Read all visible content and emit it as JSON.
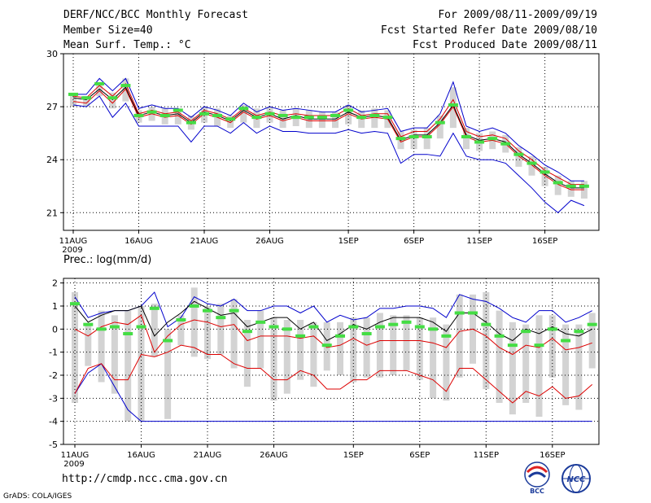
{
  "header": {
    "title": "DERF/NCC/BCC Monthly Forecast",
    "member_size": "Member Size=40",
    "variable": "Mean Surf. Temp.: °C",
    "period": "For 2009/08/11-2009/09/19",
    "refer_date": "Fcst Started Refer Date 2009/08/10",
    "produced_date": "Fcst Produced Date 2009/08/11"
  },
  "footer": {
    "url": "http://cmdp.ncc.cma.gov.cn",
    "grads": "GrADS: COLA/IGES",
    "logo_left": "BCC",
    "logo_right": "NCC"
  },
  "colors": {
    "box": "#d3d3d3",
    "median": "#44dd44",
    "mean": "#000000",
    "quartile": "#dd0000",
    "extreme": "#0000cc"
  },
  "chart_data": [
    {
      "type": "box-line",
      "title": "Mean Surf. Temp.: °C",
      "ylim": [
        20,
        30
      ],
      "yticks": [
        21,
        24,
        27,
        30
      ],
      "grid": true,
      "x_labels": [
        "11AUG",
        "16AUG",
        "21AUG",
        "26AUG",
        "1SEP",
        "6SEP",
        "11SEP",
        "16SEP"
      ],
      "x_sublabel": "2009",
      "days": 40,
      "series": [
        {
          "name": "max",
          "values": [
            27.7,
            27.7,
            28.6,
            27.9,
            28.6,
            26.9,
            27.1,
            26.9,
            26.9,
            26.4,
            27.0,
            26.8,
            26.5,
            27.2,
            26.7,
            27.0,
            26.8,
            26.9,
            26.8,
            26.7,
            26.7,
            27.1,
            26.7,
            26.8,
            26.9,
            25.6,
            25.8,
            25.8,
            26.6,
            28.4,
            25.9,
            25.6,
            25.8,
            25.5,
            24.8,
            24.3,
            23.7,
            23.3,
            22.8,
            22.8
          ]
        },
        {
          "name": "q3",
          "values": [
            27.6,
            27.5,
            28.2,
            27.6,
            28.3,
            26.6,
            26.8,
            26.6,
            26.7,
            26.2,
            26.8,
            26.6,
            26.3,
            26.9,
            26.5,
            26.7,
            26.5,
            26.6,
            26.5,
            26.5,
            26.5,
            26.9,
            26.5,
            26.6,
            26.6,
            25.3,
            25.6,
            25.6,
            26.3,
            27.4,
            25.6,
            25.3,
            25.4,
            25.2,
            24.5,
            24.0,
            23.4,
            23.0,
            22.6,
            22.6
          ]
        },
        {
          "name": "mean",
          "values": [
            27.5,
            27.4,
            28.0,
            27.4,
            28.1,
            26.5,
            26.7,
            26.5,
            26.6,
            26.1,
            26.7,
            26.5,
            26.2,
            26.8,
            26.4,
            26.6,
            26.3,
            26.5,
            26.3,
            26.3,
            26.3,
            26.7,
            26.4,
            26.5,
            26.4,
            25.1,
            25.4,
            25.4,
            26.1,
            27.1,
            25.4,
            25.1,
            25.2,
            25.0,
            24.3,
            23.8,
            23.2,
            22.7,
            22.4,
            22.4
          ]
        },
        {
          "name": "q1",
          "values": [
            27.3,
            27.2,
            27.9,
            27.2,
            28.0,
            26.4,
            26.6,
            26.4,
            26.5,
            26.0,
            26.6,
            26.4,
            26.1,
            26.7,
            26.3,
            26.5,
            26.2,
            26.4,
            26.2,
            26.2,
            26.2,
            26.6,
            26.3,
            26.4,
            26.3,
            25.0,
            25.3,
            25.3,
            26.0,
            27.0,
            25.3,
            25.0,
            25.1,
            24.9,
            24.2,
            23.7,
            23.1,
            22.6,
            22.3,
            22.3
          ]
        },
        {
          "name": "min",
          "values": [
            27.1,
            27.0,
            27.6,
            26.4,
            27.2,
            25.9,
            25.9,
            25.9,
            25.9,
            25.0,
            25.9,
            25.9,
            25.5,
            26.1,
            25.5,
            25.9,
            25.6,
            25.6,
            25.5,
            25.5,
            25.5,
            25.7,
            25.5,
            25.6,
            25.5,
            23.8,
            24.3,
            24.3,
            24.2,
            25.5,
            24.2,
            24.0,
            24.0,
            23.8,
            23.1,
            22.4,
            21.6,
            21.0,
            21.7,
            21.4
          ]
        },
        {
          "name": "median",
          "values": [
            27.7,
            27.5,
            28.3,
            27.5,
            28.2,
            26.5,
            26.7,
            26.5,
            26.8,
            26.1,
            26.6,
            26.5,
            26.3,
            26.9,
            26.4,
            26.6,
            26.5,
            26.4,
            26.4,
            26.4,
            26.5,
            26.8,
            26.4,
            26.5,
            26.4,
            25.2,
            25.3,
            25.3,
            26.1,
            27.1,
            25.3,
            25.0,
            25.2,
            24.9,
            24.3,
            23.8,
            23.3,
            22.7,
            22.5,
            22.5
          ]
        },
        {
          "name": "box_high",
          "values": [
            27.7,
            27.6,
            28.3,
            27.8,
            28.6,
            26.8,
            27.0,
            26.9,
            26.9,
            26.5,
            27.0,
            26.9,
            26.5,
            27.1,
            26.9,
            27.0,
            26.8,
            26.9,
            26.8,
            26.7,
            26.7,
            27.1,
            26.8,
            26.9,
            26.8,
            25.6,
            25.7,
            25.8,
            26.5,
            28.1,
            25.8,
            25.5,
            25.6,
            25.4,
            24.7,
            24.2,
            23.6,
            23.1,
            22.8,
            22.8
          ]
        },
        {
          "name": "box_low",
          "values": [
            27.0,
            27.0,
            27.6,
            26.9,
            27.3,
            26.1,
            26.2,
            26.0,
            26.0,
            25.7,
            26.1,
            25.9,
            25.8,
            26.1,
            25.8,
            26.1,
            25.8,
            25.9,
            25.8,
            25.8,
            25.8,
            26.0,
            25.8,
            25.8,
            25.8,
            24.6,
            24.6,
            24.6,
            25.2,
            25.8,
            24.6,
            24.5,
            24.6,
            24.4,
            23.6,
            23.1,
            22.5,
            22.0,
            21.9,
            21.8
          ]
        }
      ]
    },
    {
      "type": "box-line",
      "title": "Prec.: log(mm/d)",
      "ylim": [
        -5,
        2.2
      ],
      "yticks": [
        -5,
        -4,
        -3,
        -2,
        -1,
        0,
        1,
        2
      ],
      "grid": true,
      "x_labels": [
        "11AUG",
        "16AUG",
        "21AUG",
        "26AUG",
        "1SEP",
        "6SEP",
        "11SEP",
        "16SEP"
      ],
      "x_sublabel": "2009",
      "days": 40,
      "series": [
        {
          "name": "max",
          "values": [
            1.4,
            0.5,
            0.7,
            0.8,
            0.8,
            1.0,
            1.6,
            0.1,
            0.5,
            1.4,
            1.1,
            1.0,
            1.3,
            0.8,
            0.8,
            1.0,
            1.0,
            0.7,
            1.0,
            0.3,
            0.6,
            0.4,
            0.5,
            0.9,
            0.9,
            1.0,
            1.0,
            0.9,
            0.5,
            1.5,
            1.3,
            1.2,
            0.9,
            0.5,
            0.3,
            0.8,
            0.8,
            0.3,
            0.5,
            0.8
          ]
        },
        {
          "name": "mean",
          "values": [
            1.0,
            0.3,
            0.6,
            0.8,
            0.8,
            1.0,
            -0.3,
            0.3,
            0.7,
            1.2,
            0.9,
            0.6,
            0.7,
            0.1,
            0.3,
            0.5,
            0.5,
            0.0,
            0.3,
            -0.5,
            -0.2,
            0.2,
            0.0,
            0.3,
            0.5,
            0.5,
            0.5,
            0.3,
            -0.1,
            0.7,
            0.7,
            0.3,
            -0.2,
            -0.5,
            0.0,
            -0.2,
            0.1,
            -0.2,
            -0.3,
            0.0
          ]
        },
        {
          "name": "q1",
          "values": [
            0.0,
            -0.3,
            0.1,
            0.3,
            0.2,
            0.6,
            -1.0,
            -0.3,
            0.2,
            0.4,
            0.3,
            0.1,
            0.2,
            -0.5,
            -0.3,
            -0.3,
            -0.3,
            -0.4,
            -0.3,
            -0.8,
            -0.7,
            -0.4,
            -0.7,
            -0.5,
            -0.5,
            -0.5,
            -0.5,
            -0.6,
            -0.8,
            -0.1,
            0.0,
            -0.3,
            -0.8,
            -1.1,
            -0.7,
            -0.8,
            -0.4,
            -0.9,
            -0.8,
            -0.6
          ]
        },
        {
          "name": "q3",
          "values": [
            -2.8,
            -1.7,
            -1.5,
            -2.2,
            -2.2,
            -1.1,
            -1.2,
            -1.0,
            -0.7,
            -0.8,
            -1.1,
            -1.1,
            -1.5,
            -1.7,
            -1.7,
            -2.2,
            -2.2,
            -1.8,
            -2.0,
            -2.6,
            -2.6,
            -2.2,
            -2.2,
            -1.8,
            -1.8,
            -1.8,
            -2.0,
            -2.2,
            -2.7,
            -1.7,
            -1.7,
            -2.2,
            -2.7,
            -3.2,
            -2.7,
            -2.9,
            -2.5,
            -3.0,
            -2.9,
            -2.4
          ]
        },
        {
          "name": "min",
          "values": [
            -2.8,
            -1.9,
            -1.5,
            -2.5,
            -3.5,
            -4.0,
            -4.0,
            -4.0,
            -4.0,
            -4.0,
            -4.0,
            -4.0,
            -4.0,
            -4.0,
            -4.0,
            -4.0,
            -4.0,
            -4.0,
            -4.0,
            -4.0,
            -4.0,
            -4.0,
            -4.0,
            -4.0,
            -4.0,
            -4.0,
            -4.0,
            -4.0,
            -4.0,
            -4.0,
            -4.0,
            -4.0,
            -4.0,
            -4.0,
            -4.0,
            -4.0,
            -4.0,
            -4.0,
            -4.0,
            -4.0
          ]
        },
        {
          "name": "median",
          "values": [
            1.1,
            0.2,
            0.0,
            0.1,
            -0.2,
            0.1,
            0.9,
            -0.5,
            0.4,
            1.0,
            0.8,
            0.5,
            0.8,
            -0.1,
            0.3,
            0.1,
            0.0,
            -0.3,
            0.1,
            -0.7,
            -0.3,
            0.1,
            -0.2,
            0.1,
            0.2,
            0.3,
            0.1,
            0.0,
            -0.3,
            0.7,
            0.7,
            0.2,
            -0.3,
            -0.7,
            -0.1,
            -0.7,
            0.0,
            -0.5,
            -0.1,
            0.2
          ]
        },
        {
          "name": "box_high",
          "values": [
            1.6,
            0.2,
            0.8,
            0.6,
            0.8,
            1.0,
            1.1,
            0.0,
            0.6,
            1.8,
            1.0,
            1.1,
            1.3,
            0.4,
            0.8,
            0.5,
            0.4,
            0.4,
            0.3,
            0.3,
            0.3,
            0.5,
            0.5,
            0.7,
            0.6,
            0.6,
            0.5,
            0.5,
            0.2,
            1.5,
            1.5,
            1.6,
            0.8,
            0.3,
            0.2,
            0.6,
            0.6,
            0.2,
            0.2,
            0.7
          ]
        },
        {
          "name": "box_low",
          "values": [
            -3.2,
            -1.6,
            -2.3,
            -2.8,
            -4.0,
            -4.0,
            -1.2,
            -3.9,
            -0.7,
            -1.2,
            -1.3,
            -1.1,
            -1.7,
            -2.5,
            -1.7,
            -3.1,
            -2.8,
            -2.2,
            -2.5,
            -1.8,
            -2.0,
            -2.3,
            -2.1,
            -2.1,
            -2.0,
            -1.8,
            -2.2,
            -3.0,
            -3.1,
            -2.1,
            -1.5,
            -2.6,
            -3.2,
            -3.7,
            -3.2,
            -3.8,
            -2.1,
            -3.3,
            -3.5,
            -1.7
          ]
        }
      ]
    }
  ]
}
